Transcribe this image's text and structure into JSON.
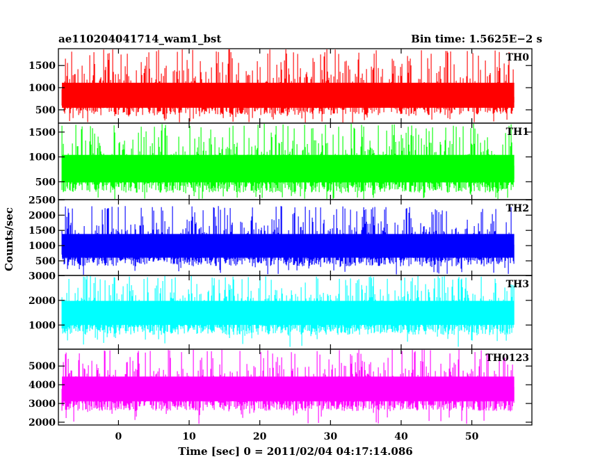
{
  "header": {
    "left": "ae110204041714_wam1_bst",
    "right": "Bin time: 1.5625E−2 s"
  },
  "chart_data": {
    "type": "line",
    "title": "ae110204041714_wam1_bst",
    "subtitle": "Bin time: 1.5625E−2 s",
    "xlabel": "Time [sec] 0 = 2011/02/04 04:17:14.086",
    "ylabel": "Counts/sec",
    "xlim": [
      -8.5,
      58.5
    ],
    "data_x_range": [
      -8,
      56
    ],
    "bin_time": 0.015625,
    "x_ticks": [
      0,
      10,
      20,
      30,
      40,
      50
    ],
    "x_tick_labels": [
      "0",
      "10",
      "20",
      "30",
      "40",
      "50"
    ],
    "grid": false,
    "panels": [
      {
        "name": "TH0",
        "color": "#ff0000",
        "ylim": [
          200,
          1880
        ],
        "y_ticks": [
          500,
          1000,
          1500
        ],
        "y_tick_labels": [
          "500",
          "1000",
          "1500"
        ],
        "mean": 750,
        "low": 380,
        "high": 1880,
        "spike_low": 200
      },
      {
        "name": "TH1",
        "color": "#00ff00",
        "ylim": [
          140,
          1680
        ],
        "y_ticks": [
          500,
          1000,
          1500
        ],
        "y_tick_labels": [
          "500",
          "1000",
          "1500"
        ],
        "mean": 740,
        "low": 280,
        "high": 1680,
        "spike_low": 140
      },
      {
        "name": "TH2",
        "color": "#0000ff",
        "ylim": [
          20,
          2510
        ],
        "y_ticks": [
          500,
          1000,
          1500,
          2000,
          2500
        ],
        "y_tick_labels": [
          "500",
          "1000",
          "1500",
          "2000",
          "2500"
        ],
        "mean": 950,
        "low": 320,
        "high": 2300,
        "spike_low": 20
      },
      {
        "name": "TH3",
        "color": "#00ffff",
        "ylim": [
          20,
          3010
        ],
        "y_ticks": [
          1000,
          2000,
          3000
        ],
        "y_tick_labels": [
          "1000",
          "2000",
          "3000"
        ],
        "mean": 1500,
        "low": 600,
        "high": 3000,
        "spike_low": 100
      },
      {
        "name": "TH0123",
        "color": "#ff00ff",
        "ylim": [
          1850,
          5900
        ],
        "y_ticks": [
          2000,
          3000,
          4000,
          5000
        ],
        "y_tick_labels": [
          "2000",
          "3000",
          "4000",
          "5000"
        ],
        "mean": 3750,
        "low": 2600,
        "high": 5900,
        "spike_low": 1850
      }
    ]
  }
}
